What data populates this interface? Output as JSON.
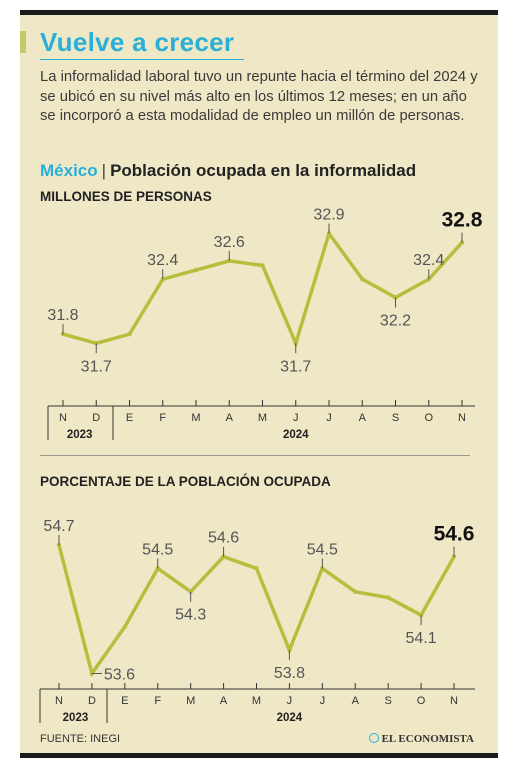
{
  "header": {
    "title": "Vuelve a crecer",
    "subtitle": "La informalidad laboral tuvo un repunte hacia el término del 2024 y se ubicó en su nivel más alto en los últimos 12 meses; en un año se incorporó a esta modalidad de empleo un millón de personas."
  },
  "chart1_header": {
    "country": "México",
    "separator": "|",
    "topic": "Población ocupada en la informalidad"
  },
  "footer": {
    "source": "FUENTE: INEGI",
    "brand": "EL ECONOMISTA"
  },
  "colors": {
    "line": "#b5bf3d",
    "accent": "#2ab0d8",
    "background": "#efe8c6"
  },
  "chart_data": [
    {
      "type": "line",
      "title": "MILLONES DE PERSONAS",
      "categories": [
        "N",
        "D",
        "E",
        "F",
        "M",
        "A",
        "M",
        "J",
        "J",
        "A",
        "S",
        "O",
        "N"
      ],
      "years": [
        {
          "label": "2023",
          "from": 0,
          "to": 1
        },
        {
          "label": "2024",
          "from": 2,
          "to": 12
        }
      ],
      "values": [
        31.8,
        31.7,
        31.8,
        32.4,
        32.5,
        32.6,
        32.55,
        31.7,
        32.9,
        32.4,
        32.2,
        32.4,
        32.8
      ],
      "labels": [
        {
          "index": 0,
          "text": "31.8",
          "pos": "above"
        },
        {
          "index": 1,
          "text": "31.7",
          "pos": "below"
        },
        {
          "index": 3,
          "text": "32.4",
          "pos": "above"
        },
        {
          "index": 5,
          "text": "32.6",
          "pos": "above"
        },
        {
          "index": 7,
          "text": "31.7",
          "pos": "below"
        },
        {
          "index": 8,
          "text": "32.9",
          "pos": "above"
        },
        {
          "index": 10,
          "text": "32.2",
          "pos": "below"
        },
        {
          "index": 11,
          "text": "32.4",
          "pos": "above"
        },
        {
          "index": 12,
          "text": "32.8",
          "pos": "above",
          "bold": true
        }
      ],
      "ylim": [
        31.2,
        33.2
      ],
      "grid": false
    },
    {
      "type": "line",
      "title": "PORCENTAJE DE LA POBLACIÓN OCUPADA",
      "categories": [
        "N",
        "D",
        "E",
        "F",
        "M",
        "A",
        "M",
        "J",
        "J",
        "A",
        "S",
        "O",
        "N"
      ],
      "years": [
        {
          "label": "2023",
          "from": 0,
          "to": 1
        },
        {
          "label": "2024",
          "from": 2,
          "to": 12
        }
      ],
      "values": [
        54.7,
        53.6,
        54.0,
        54.5,
        54.3,
        54.6,
        54.5,
        53.8,
        54.5,
        54.3,
        54.25,
        54.1,
        54.6
      ],
      "labels": [
        {
          "index": 0,
          "text": "54.7",
          "pos": "above"
        },
        {
          "index": 1,
          "text": "53.6",
          "pos": "right"
        },
        {
          "index": 3,
          "text": "54.5",
          "pos": "above"
        },
        {
          "index": 4,
          "text": "54.3",
          "pos": "below"
        },
        {
          "index": 5,
          "text": "54.6",
          "pos": "above"
        },
        {
          "index": 7,
          "text": "53.8",
          "pos": "below"
        },
        {
          "index": 8,
          "text": "54.5",
          "pos": "above"
        },
        {
          "index": 11,
          "text": "54.1",
          "pos": "below"
        },
        {
          "index": 12,
          "text": "54.6",
          "pos": "above",
          "bold": true
        }
      ],
      "ylim": [
        53.45,
        55.0
      ],
      "grid": false
    }
  ]
}
